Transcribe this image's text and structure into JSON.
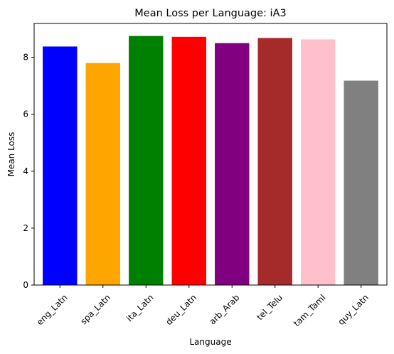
{
  "chart_data": {
    "type": "bar",
    "title": "Mean Loss per Language: iA3",
    "xlabel": "Language",
    "ylabel": "Mean Loss",
    "categories": [
      "eng_Latn",
      "spa_Latn",
      "ita_Latn",
      "deu_Latn",
      "arb_Arab",
      "tel_Telu",
      "tam_Taml",
      "quy_Latn"
    ],
    "values": [
      8.38,
      7.8,
      8.75,
      8.72,
      8.5,
      8.68,
      8.63,
      7.18
    ],
    "colors": [
      "#0000ff",
      "#ffa500",
      "#008000",
      "#ff0000",
      "#800080",
      "#a52a2a",
      "#ffc0cb",
      "#808080"
    ],
    "ylim": [
      0,
      9.19
    ],
    "yticks": [
      0,
      2,
      4,
      6,
      8
    ],
    "xtick_rotation_deg": 45,
    "grid": false,
    "legend": "none"
  }
}
